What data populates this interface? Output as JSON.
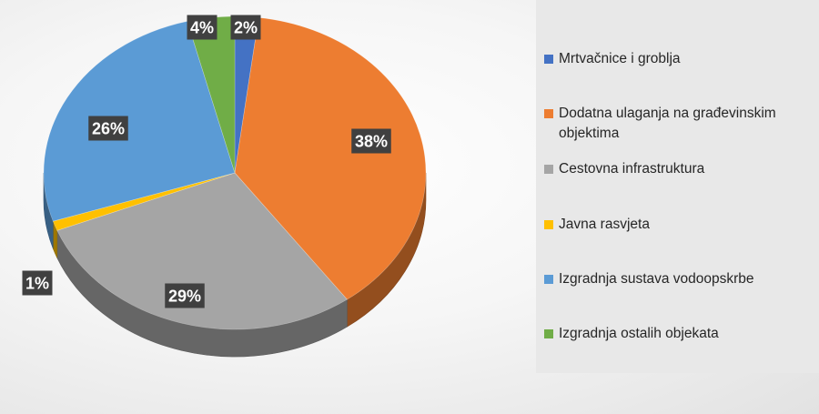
{
  "chart_data": {
    "type": "pie",
    "style": "3d",
    "title": "",
    "slices": [
      {
        "label": "Mrtvačnice i groblja",
        "value": 2,
        "display": "2%",
        "color": "#4472c4"
      },
      {
        "label": "Dodatna ulaganja na građevinskim objektima",
        "value": 38,
        "display": "38%",
        "color": "#ed7d31"
      },
      {
        "label": "Cestovna infrastruktura",
        "value": 29,
        "display": "29%",
        "color": "#a5a5a5"
      },
      {
        "label": "Javna rasvjeta",
        "value": 1,
        "display": "1%",
        "color": "#ffc000"
      },
      {
        "label": "Izgradnja sustava vodoopskrbe",
        "value": 26,
        "display": "26%",
        "color": "#5b9bd5"
      },
      {
        "label": "Izgradnja ostalih objekata",
        "value": 4,
        "display": "4%",
        "color": "#70ad47"
      }
    ],
    "legend_position": "right",
    "data_labels": "outside-end, dark boxes"
  }
}
